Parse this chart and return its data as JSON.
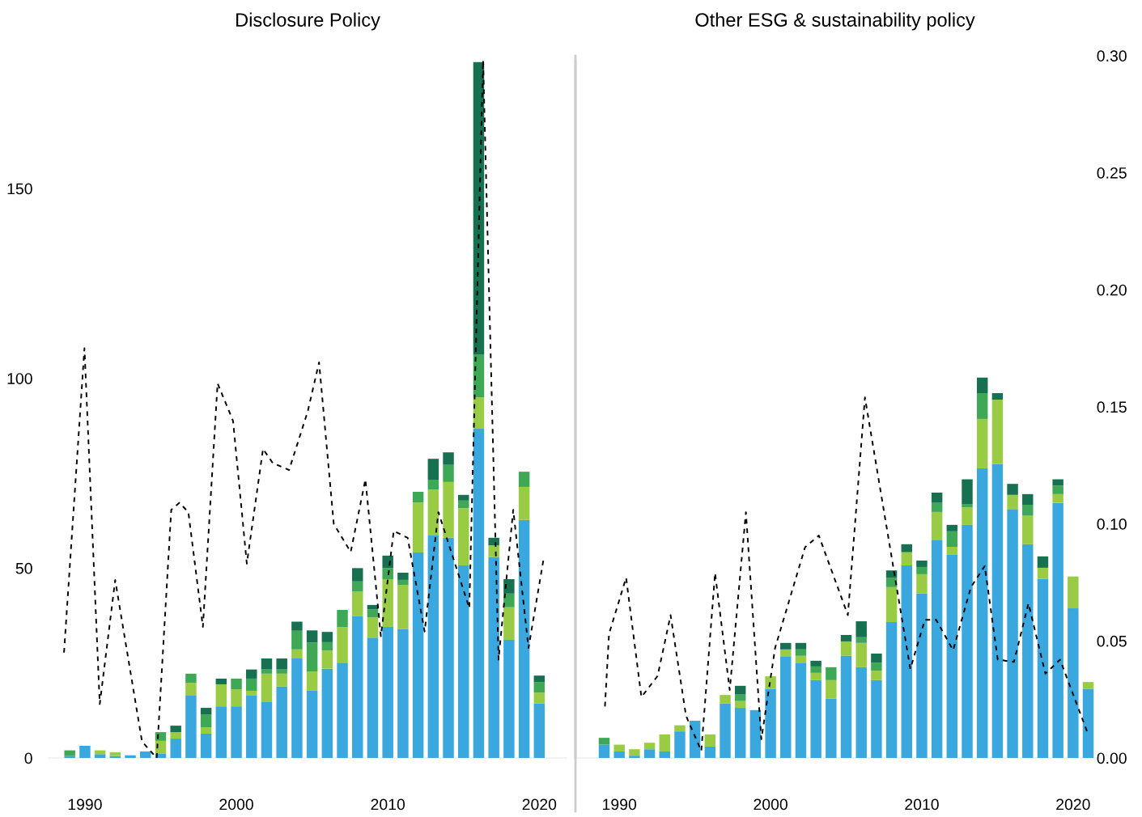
{
  "chart_data": [
    {
      "type": "bar",
      "title": "Disclosure Policy",
      "stacked": true,
      "x": [
        1989,
        1990,
        1991,
        1992,
        1993,
        1994,
        1995,
        1996,
        1997,
        1998,
        1999,
        2000,
        2001,
        2002,
        2003,
        2004,
        2005,
        2006,
        2007,
        2008,
        2009,
        2010,
        2011,
        2012,
        2013,
        2014,
        2015,
        2016,
        2017,
        2018,
        2019,
        2020
      ],
      "xlim": [
        1987.6,
        2021.8
      ],
      "xticks": [
        1990,
        2000,
        2010,
        2020
      ],
      "ylim": [
        0,
        185
      ],
      "yticks": [
        0,
        50,
        100,
        150
      ],
      "y2lim": [
        0,
        0.3
      ],
      "tick_labels": [
        "x",
        "y"
      ],
      "grid": false,
      "series": [
        {
          "color": "#3aa8df",
          "values": [
            0.5,
            3.2,
            1,
            0.5,
            0.7,
            1.7,
            1.2,
            5.1,
            16.4,
            6.4,
            13.6,
            13.6,
            16.4,
            14.7,
            18.8,
            26.2,
            17.7,
            23.5,
            25.1,
            37.3,
            31.7,
            34.5,
            33.9,
            54.1,
            58.6,
            58.0,
            50.7,
            86.7,
            52.9,
            31.1,
            62.7,
            14.3
          ]
        },
        {
          "color": "#9acb45",
          "values": [
            0,
            0,
            1,
            1,
            0,
            0,
            3.3,
            1.7,
            3.4,
            1.7,
            5.8,
            4.5,
            1.3,
            7.5,
            3.4,
            2.4,
            5.1,
            4.8,
            9.4,
            6.5,
            5.3,
            12.6,
            11.7,
            13.2,
            12.1,
            14.7,
            15.1,
            8.3,
            3.1,
            8.6,
            8.7,
            2.9
          ]
        },
        {
          "color": "#3fa856",
          "values": [
            1.5,
            0,
            0,
            0,
            0,
            0,
            2.3,
            0,
            2.4,
            3.4,
            0,
            2.8,
            3.2,
            1.1,
            1.1,
            4.9,
            7.6,
            2.2,
            4.5,
            2.7,
            2.1,
            2.9,
            1.3,
            2.8,
            2.6,
            4.5,
            2.0,
            11.3,
            0,
            3.6,
            4.0,
            2.8
          ]
        },
        {
          "color": "#17704f",
          "values": [
            0,
            0,
            0,
            0,
            0,
            0,
            0,
            1.7,
            0,
            1.7,
            1.5,
            0,
            2.4,
            2.9,
            2.9,
            2.4,
            3.2,
            2.7,
            0,
            3.5,
            1.2,
            3.3,
            1.9,
            0,
            5.5,
            3.3,
            1.5,
            77,
            2.0,
            3.8,
            0,
            1.7
          ]
        },
        {
          "type": "line",
          "axis": "y2",
          "color": "#000000",
          "line_style": "dashed",
          "marker": "none",
          "x": [
            1988.62,
            1989.97,
            1990.98,
            1992.0,
            1993.77,
            1994.74,
            1995.7,
            1996.24,
            1996.83,
            1997.79,
            1998.76,
            1999.78,
            2000.69,
            2001.76,
            2002.4,
            2003.48,
            2004.71,
            2005.46,
            2006.43,
            2007.55,
            2008.52,
            2009.54,
            2010.39,
            2011.31,
            2012.43,
            2013.34,
            2015.38,
            2016.29,
            2017.31,
            2018.28,
            2019.29,
            2020.31
          ],
          "values": [
            0.045,
            0.175,
            0.023,
            0.076,
            0.007,
            0.0,
            0.106,
            0.109,
            0.105,
            0.056,
            0.16,
            0.144,
            0.083,
            0.132,
            0.126,
            0.123,
            0.148,
            0.169,
            0.1,
            0.088,
            0.119,
            0.052,
            0.097,
            0.094,
            0.054,
            0.105,
            0.064,
            0.298,
            0.042,
            0.106,
            0.047,
            0.086
          ]
        }
      ]
    },
    {
      "type": "bar",
      "title": "Other ESG & sustainability policy",
      "stacked": true,
      "x": [
        1989,
        1990,
        1991,
        1992,
        1993,
        1994,
        1995,
        1996,
        1997,
        1998,
        1999,
        2000,
        2001,
        2002,
        2003,
        2004,
        2005,
        2006,
        2007,
        2008,
        2009,
        2010,
        2011,
        2012,
        2013,
        2014,
        2015,
        2016,
        2017,
        2018,
        2019,
        2020,
        2021
      ],
      "xlim": [
        1987.1,
        2021.4
      ],
      "xticks": [
        1990,
        2000,
        2010,
        2020
      ],
      "ylim": [
        0,
        185
      ],
      "y2lim": [
        0,
        0.3
      ],
      "y2ticks": [
        {
          "value": 0,
          "label": "0.00"
        },
        0.05,
        {
          "value": 0.1,
          "label": "0.10"
        },
        0.15,
        {
          "value": 0.2,
          "label": "0.20"
        },
        0.25,
        {
          "value": 0.3,
          "label": "0.30"
        }
      ],
      "tick_labels": [
        "x",
        "y2"
      ],
      "grid": false,
      "series": [
        {
          "color": "#3aa8df",
          "values": [
            3.5,
            1.7,
            0.6,
            2.3,
            1.7,
            7.0,
            9.8,
            3.0,
            14.3,
            13.2,
            12.6,
            18.2,
            26.8,
            25.1,
            20.5,
            15.6,
            26.9,
            23.9,
            20.5,
            35.8,
            50.7,
            43.3,
            57.5,
            53.5,
            61.4,
            76.3,
            77.4,
            65.4,
            56.3,
            47.2,
            67.2,
            39.4,
            18.2
          ]
        },
        {
          "color": "#9acb45",
          "values": [
            0,
            1.8,
            1.7,
            1.7,
            4.5,
            1.6,
            0,
            3.2,
            2.3,
            1.8,
            0,
            3.3,
            1.8,
            1.8,
            1.9,
            4.9,
            3.8,
            6.4,
            2.5,
            9.2,
            3.5,
            5.1,
            7.3,
            2.1,
            4.6,
            13.0,
            17.0,
            3.9,
            7.5,
            2.9,
            2.3,
            8.4,
            1.8
          ]
        },
        {
          "color": "#3fa856",
          "values": [
            1.8,
            0,
            0,
            0,
            0,
            0,
            0,
            0,
            0,
            1.7,
            0,
            0,
            0,
            1.7,
            1.7,
            3.4,
            0,
            1.5,
            2.1,
            2.5,
            0,
            1.9,
            2.4,
            4.1,
            0.9,
            6.8,
            0,
            0,
            2.9,
            0,
            2.2,
            0,
            0
          ]
        },
        {
          "color": "#17704f",
          "values": [
            0,
            0,
            0,
            0,
            0,
            0,
            0,
            0,
            0,
            2.3,
            0,
            0,
            1.7,
            1.7,
            1.5,
            0,
            1.7,
            4.2,
            2.4,
            1.9,
            2.1,
            1.7,
            2.7,
            1.7,
            6.5,
            4.1,
            1.7,
            2.9,
            2.8,
            3.0,
            1.7,
            0,
            0
          ]
        },
        {
          "type": "line",
          "axis": "y2",
          "color": "#000000",
          "line_style": "dashed",
          "marker": "none",
          "x": [
            1989.05,
            1989.32,
            1990.45,
            1991.46,
            1992.53,
            1993.39,
            1994.41,
            1995.42,
            1996.33,
            1997.3,
            1998.37,
            1999.39,
            2000.3,
            2002.28,
            2003.19,
            2005.11,
            2006.24,
            2009.24,
            2010.2,
            2010.95,
            2012.07,
            2013.25,
            2014.16,
            2015.02,
            2016.09,
            2017.05,
            2018.17,
            2019.14,
            2021.0
          ],
          "values": [
            0.022,
            0.053,
            0.077,
            0.026,
            0.035,
            0.061,
            0.018,
            0.003,
            0.079,
            0.029,
            0.105,
            0.008,
            0.047,
            0.09,
            0.095,
            0.061,
            0.154,
            0.038,
            0.059,
            0.059,
            0.046,
            0.073,
            0.082,
            0.042,
            0.041,
            0.066,
            0.036,
            0.042,
            0.01
          ]
        }
      ]
    }
  ]
}
